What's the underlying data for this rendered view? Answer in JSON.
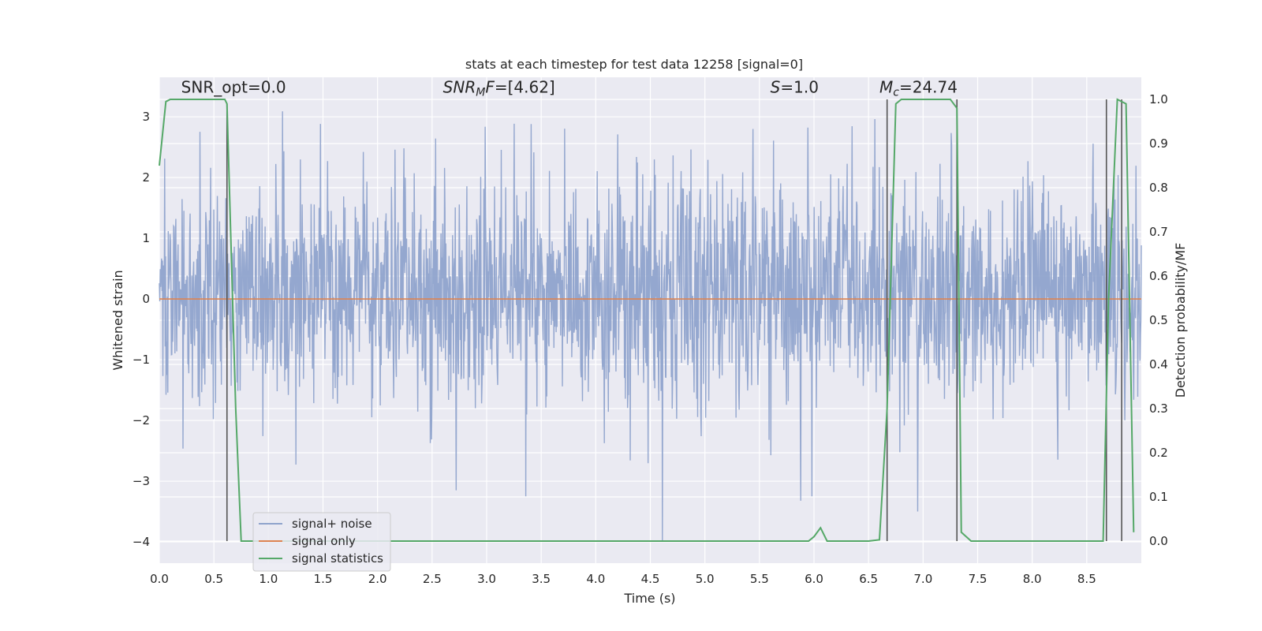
{
  "chart_data": {
    "type": "line",
    "title": "stats at each timestep for test data 12258 [signal=0]",
    "xlabel": "Time (s)",
    "ylabel_left": "Whitened strain",
    "ylabel_right": "Detection probability/MF",
    "xlim": [
      0.0,
      9.0
    ],
    "ylim_left": [
      -4.35,
      3.65
    ],
    "ylim_right": [
      -0.05,
      1.05
    ],
    "x_ticks": [
      0.0,
      0.5,
      1.0,
      1.5,
      2.0,
      2.5,
      3.0,
      3.5,
      4.0,
      4.5,
      5.0,
      5.5,
      6.0,
      6.5,
      7.0,
      7.5,
      8.0,
      8.5
    ],
    "x_tick_labels": [
      "0.0",
      "0.5",
      "1.0",
      "1.5",
      "2.0",
      "2.5",
      "3.0",
      "3.5",
      "4.0",
      "4.5",
      "5.0",
      "5.5",
      "6.0",
      "6.5",
      "7.0",
      "7.5",
      "8.0",
      "8.5"
    ],
    "y_left_ticks": [
      3,
      2,
      1,
      0,
      -1,
      -2,
      -3,
      -4
    ],
    "y_left_tick_labels": [
      "3",
      "2",
      "1",
      "0",
      "−1",
      "−2",
      "−3",
      "−4"
    ],
    "y_right_ticks": [
      1.0,
      0.9,
      0.8,
      0.7,
      0.6,
      0.5,
      0.4,
      0.3,
      0.2,
      0.1,
      0.0
    ],
    "y_right_tick_labels": [
      "1.0",
      "0.9",
      "0.8",
      "0.7",
      "0.6",
      "0.5",
      "0.4",
      "0.3",
      "0.2",
      "0.1",
      "0.0"
    ],
    "grid": true,
    "legend_position": "lower-left",
    "annotations": [
      {
        "text": "SNR_opt=0.0",
        "x": 0.2,
        "y": 3.4
      },
      {
        "text": "SNRMF=[4.62]",
        "x": 2.6,
        "y": 3.4
      },
      {
        "text": "S=1.0",
        "x": 5.6,
        "y": 3.4
      },
      {
        "text": "Mc=24.74",
        "x": 6.6,
        "y": 3.4
      }
    ],
    "series": [
      {
        "name": "signal+ noise",
        "color": "#8fa3cc",
        "axis": "left",
        "description_stats": {
          "x_start": 0.0,
          "x_end": 9.0,
          "typical_range": [
            -2.0,
            2.5
          ],
          "max": 3.2,
          "min": -4.0
        }
      },
      {
        "name": "signal only",
        "color": "#dd8452",
        "axis": "left",
        "x": [
          0.0,
          9.0
        ],
        "y": [
          0.0,
          0.0
        ]
      },
      {
        "name": "signal statistics",
        "color": "#55a868",
        "axis": "right",
        "x": [
          0.0,
          0.06,
          0.1,
          0.2,
          0.5,
          0.6,
          0.62,
          0.7,
          0.75,
          1.0,
          2.0,
          3.0,
          4.0,
          5.0,
          5.95,
          6.0,
          6.06,
          6.12,
          6.5,
          6.6,
          6.67,
          6.75,
          6.8,
          7.0,
          7.25,
          7.31,
          7.35,
          7.44,
          7.6,
          8.0,
          8.5,
          8.65,
          8.7,
          8.78,
          8.86,
          8.93
        ],
        "y": [
          0.85,
          0.995,
          1.0,
          1.0,
          1.0,
          1.0,
          0.99,
          0.3,
          0.0,
          0.0,
          0.0,
          0.0,
          0.0,
          0.0,
          0.0,
          0.01,
          0.03,
          0.0,
          0.0,
          0.003,
          0.3,
          0.99,
          1.0,
          1.0,
          1.0,
          0.98,
          0.02,
          0.0,
          0.0,
          0.0,
          0.0,
          0.0,
          0.55,
          1.0,
          0.99,
          0.02
        ]
      }
    ],
    "vertical_markers": [
      {
        "x": 0.62,
        "y0": 0.0,
        "y1": 0.99
      },
      {
        "x": 6.67,
        "y0": 0.0,
        "y1": 1.0
      },
      {
        "x": 7.31,
        "y0": 0.0,
        "y1": 1.0
      },
      {
        "x": 8.68,
        "y0": 0.0,
        "y1": 1.0
      },
      {
        "x": 8.82,
        "y0": 0.0,
        "y1": 1.0
      }
    ],
    "noise_dips": [
      {
        "x": 4.61,
        "y": -4.0
      },
      {
        "x": 6.95,
        "y": -3.5
      },
      {
        "x": 2.72,
        "y": -3.15
      },
      {
        "x": 3.36,
        "y": -3.25
      },
      {
        "x": 5.98,
        "y": -3.25
      }
    ],
    "seed": 12258
  }
}
